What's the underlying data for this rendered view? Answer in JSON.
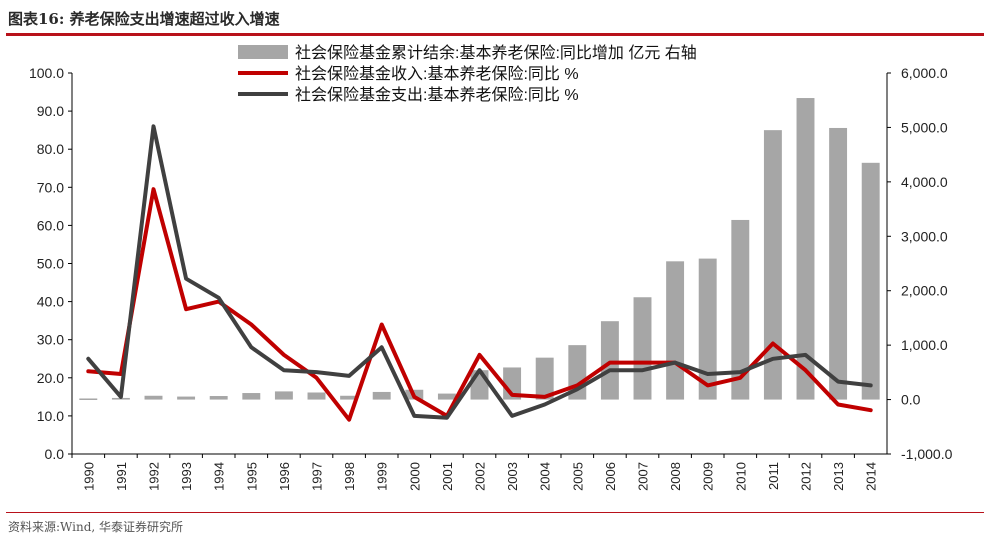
{
  "figure": {
    "title": "图表16:   养老保险支出增速超过收入增速",
    "source": "资料来源:Wind, 华泰证券研究所"
  },
  "chart_data": {
    "type": "bar+line",
    "categories": [
      "1990",
      "1991",
      "1992",
      "1993",
      "1994",
      "1995",
      "1996",
      "1997",
      "1998",
      "1999",
      "2000",
      "2001",
      "2002",
      "2003",
      "2004",
      "2005",
      "2006",
      "2007",
      "2008",
      "2009",
      "2010",
      "2011",
      "2012",
      "2013",
      "2014"
    ],
    "bar_series": {
      "name": "社会保险基金累计结余:基本养老保险:同比增加 亿元 右轴",
      "axis": "right",
      "color": "#a6a6a6",
      "values": [
        20,
        30,
        70,
        55,
        65,
        120,
        150,
        130,
        70,
        140,
        180,
        110,
        540,
        590,
        770,
        1000,
        1440,
        1880,
        2540,
        2590,
        3300,
        4950,
        5540,
        4990,
        4350
      ]
    },
    "line_series": [
      {
        "name": "社会保险基金收入:基本养老保险:同比 %",
        "axis": "left",
        "color": "#c00000",
        "values": [
          21.7,
          21.0,
          69.5,
          38.0,
          40.0,
          34.0,
          26.0,
          20.0,
          9.0,
          34.0,
          15.0,
          10.0,
          26.0,
          15.5,
          15.0,
          18.0,
          24.0,
          24.0,
          24.0,
          18.0,
          20.0,
          29.0,
          22.0,
          13.0,
          11.5
        ]
      },
      {
        "name": "社会保险基金支出:基本养老保险:同比 %",
        "axis": "left",
        "color": "#404040",
        "values": [
          25.0,
          15.0,
          86.0,
          46.0,
          41.0,
          28.0,
          22.0,
          21.5,
          20.5,
          28.0,
          10.0,
          9.5,
          22.0,
          10.0,
          13.0,
          17.0,
          22.0,
          22.0,
          24.0,
          21.0,
          21.5,
          25.0,
          26.0,
          19.0,
          18.0
        ]
      }
    ],
    "y_left": {
      "min": 0,
      "max": 100,
      "step": 10,
      "tick_labels": [
        "0.0",
        "10.0",
        "20.0",
        "30.0",
        "40.0",
        "50.0",
        "60.0",
        "70.0",
        "80.0",
        "90.0",
        "100.0"
      ]
    },
    "y_right": {
      "min": -1000,
      "max": 6000,
      "step": 1000,
      "tick_labels": [
        "-1,000.0",
        "0.0",
        "1,000.0",
        "2,000.0",
        "3,000.0",
        "4,000.0",
        "5,000.0",
        "6,000.0"
      ]
    },
    "grid": false,
    "legend_position": "top"
  }
}
